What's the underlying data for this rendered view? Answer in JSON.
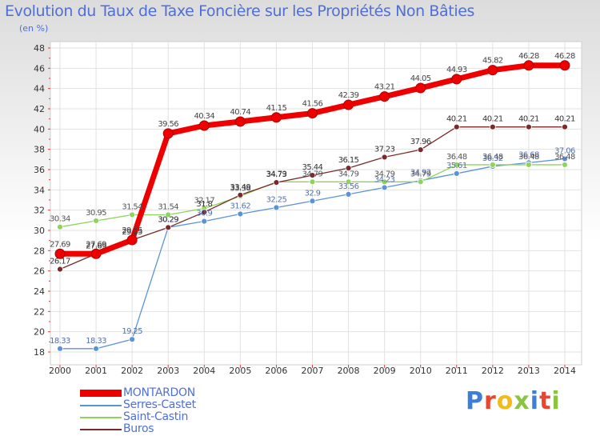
{
  "title": "Evolution du Taux de Taxe Foncière sur les Propriétés Non Bâties",
  "subtitle": "(en %)",
  "brand": {
    "text": "Proxiti",
    "letters": [
      "P",
      "r",
      "o",
      "x",
      "i",
      "t",
      "i"
    ],
    "colors": [
      "#3d7ed8",
      "#e8472e",
      "#f6b91a",
      "#8bc43f",
      "#3d7ed8",
      "#e8472e",
      "#8bc43f"
    ]
  },
  "chart_data": {
    "type": "line",
    "title": "Evolution du Taux de Taxe Foncière sur les Propriétés Non Bâties",
    "ylabel": "(en %)",
    "xlabel": "",
    "x": [
      "2000",
      "2001",
      "2002",
      "2003",
      "2004",
      "2005",
      "2006",
      "2007",
      "2008",
      "2009",
      "2010",
      "2011",
      "2012",
      "2013",
      "2014"
    ],
    "ylim": [
      18,
      48
    ],
    "yticks": [
      18,
      20,
      22,
      24,
      26,
      28,
      30,
      32,
      34,
      36,
      38,
      40,
      42,
      44,
      46,
      48
    ],
    "grid": true,
    "legend_position": "bottom-left",
    "series": [
      {
        "name": "MONTARDON",
        "color": "#ee0000",
        "values": [
          27.69,
          27.69,
          29.05,
          39.56,
          40.34,
          40.74,
          41.15,
          41.56,
          42.39,
          43.21,
          44.05,
          44.93,
          45.82,
          46.28,
          46.28
        ],
        "labels": [
          "27.69",
          "27.69",
          "29.05",
          "39.56",
          "40.34",
          "40.74",
          "41.15",
          "41.56",
          "42.39",
          "43.21",
          "44.05",
          "44.93",
          "45.82",
          "46.28",
          "46.28"
        ]
      },
      {
        "name": "Serres-Castet",
        "color": "#5b93d8",
        "values": [
          18.33,
          18.33,
          19.25,
          30.29,
          30.9,
          31.62,
          32.25,
          32.9,
          33.56,
          34.23,
          34.92,
          35.61,
          36.32,
          36.68,
          37.06
        ],
        "labels": [
          "18.33",
          "18.33",
          "19.25",
          "30.29",
          "30.9",
          "31.62",
          "32.25",
          "32.9",
          "33.56",
          "34.23",
          "34.92",
          "35.61",
          "36.32",
          "36.68",
          "37.06"
        ]
      },
      {
        "name": "Saint-Castin",
        "color": "#8fd45a",
        "values": [
          30.34,
          30.95,
          31.54,
          31.54,
          32.17,
          33.36,
          34.79,
          34.79,
          34.79,
          34.79,
          34.79,
          36.48,
          36.48,
          36.48,
          36.48
        ],
        "labels": [
          "30.34",
          "30.95",
          "31.54",
          "31.54",
          "32.17",
          "33.36",
          "34.79",
          "34.79",
          "34.79",
          "34.79",
          "34.79",
          "36.48",
          "36.48",
          "36.48",
          "36.48"
        ]
      },
      {
        "name": "Buros",
        "color": "#7a2a2a",
        "values": [
          26.17,
          27.69,
          29.05,
          30.29,
          31.8,
          33.49,
          34.73,
          35.44,
          36.15,
          37.23,
          37.96,
          40.21,
          40.21,
          40.21,
          40.21
        ],
        "labels": [
          "26.17",
          "27.69",
          "29.05",
          "30.29",
          "31.8",
          "33.49",
          "34.73",
          "35.44",
          "36.15",
          "37.23",
          "37.96",
          "40.21",
          "40.21",
          "40.21",
          "40.21"
        ]
      }
    ]
  }
}
